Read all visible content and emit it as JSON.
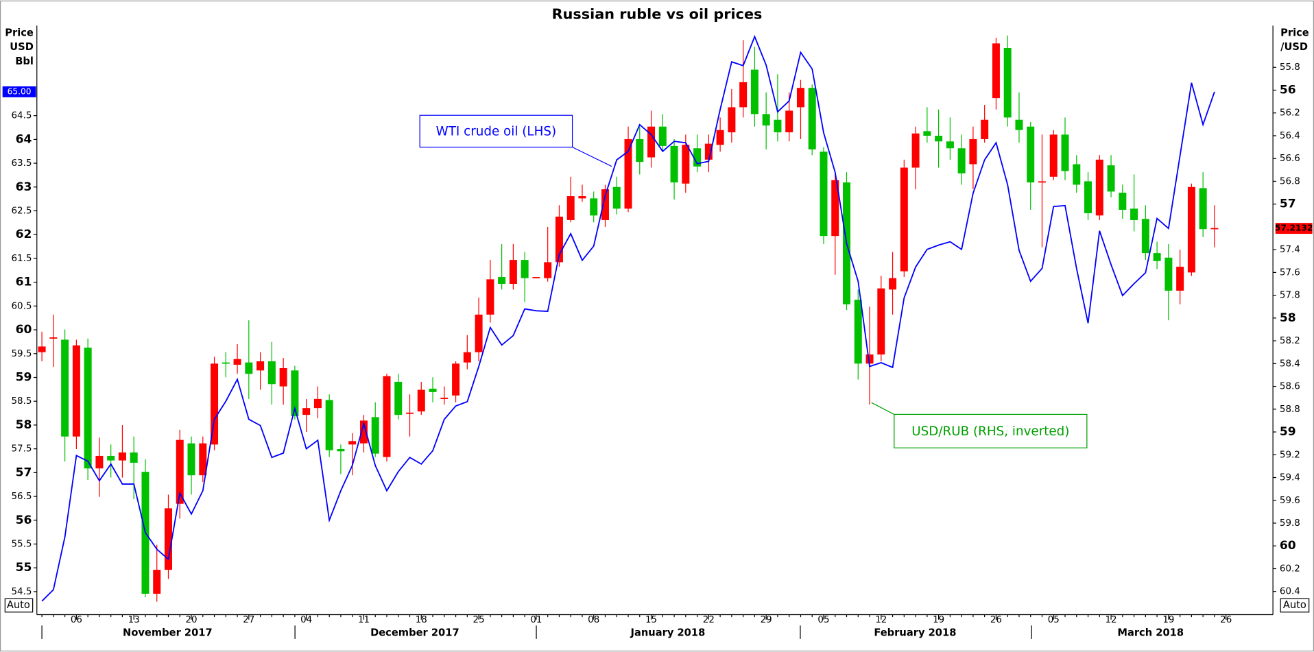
{
  "chart_data": {
    "type": "candlestick",
    "title": "Russian ruble vs oil prices",
    "y_label": [
      "Price",
      "USD",
      "Bbl"
    ],
    "y2_label": [
      "Price",
      "/USD"
    ],
    "buttons": [
      "Auto",
      "Auto"
    ],
    "months": [
      "November 2017",
      "December 2017",
      "January 2018",
      "February 2018",
      "March 2018"
    ],
    "categories": [
      null,
      null,
      null,
      "06",
      null,
      null,
      null,
      null,
      "13",
      null,
      null,
      null,
      null,
      "20",
      null,
      null,
      null,
      null,
      "27",
      null,
      null,
      null,
      null,
      "04",
      null,
      null,
      null,
      null,
      "11",
      null,
      null,
      null,
      null,
      "18",
      null,
      null,
      null,
      null,
      "25",
      null,
      null,
      null,
      null,
      "01",
      null,
      null,
      null,
      null,
      "08",
      null,
      null,
      null,
      null,
      "15",
      null,
      null,
      null,
      null,
      "22",
      null,
      null,
      null,
      null,
      "29",
      null,
      null,
      null,
      null,
      "05",
      null,
      null,
      null,
      null,
      "12",
      null,
      null,
      null,
      null,
      "19",
      null,
      null,
      null,
      null,
      "26",
      null,
      null,
      null,
      null,
      "05",
      null,
      null,
      null,
      null,
      "12",
      null,
      null,
      null,
      null,
      "19",
      null,
      null,
      null,
      null,
      "26"
    ],
    "ylim": [
      54.07,
      66.39
    ],
    "yticks": [
      54.5,
      55,
      55.5,
      56,
      56.5,
      57,
      57.5,
      58,
      58.5,
      59,
      59.5,
      60,
      60.5,
      61,
      61.5,
      62,
      62.5,
      63,
      63.5,
      64,
      64.5
    ],
    "y2lim": [
      60.581,
      55.434
    ],
    "y2ticks": [
      55.8,
      56,
      56.2,
      56.4,
      56.6,
      56.8,
      57,
      57.4,
      57.6,
      57.8,
      58,
      58.2,
      58.4,
      58.6,
      58.8,
      59,
      59.2,
      59.4,
      59.6,
      59.8,
      60,
      60.2,
      60.4
    ],
    "series": [
      {
        "type": "line",
        "name": "WTI crude oil (LHS)",
        "color": "#0000ff",
        "values": [
          54.3,
          54.54,
          55.65,
          57.36,
          57.24,
          56.83,
          57.18,
          56.76,
          56.76,
          55.74,
          55.39,
          55.18,
          56.57,
          56.13,
          56.62,
          58.12,
          58.5,
          58.96,
          58.12,
          57.99,
          57.32,
          57.41,
          58.35,
          57.5,
          57.68,
          56.0,
          56.62,
          57.15,
          58.03,
          57.15,
          56.62,
          57.02,
          57.32,
          57.18,
          57.46,
          58.12,
          58.4,
          58.49,
          59.23,
          60.05,
          59.68,
          59.88,
          60.44,
          60.4,
          60.39,
          61.58,
          62.02,
          61.46,
          61.76,
          62.82,
          63.57,
          63.75,
          64.31,
          64.1,
          63.75,
          63.96,
          63.93,
          63.49,
          63.54,
          64.63,
          65.63,
          65.55,
          66.16,
          65.56,
          64.58,
          64.81,
          65.83,
          65.48,
          64.14,
          63.31,
          61.81,
          61.02,
          59.23,
          59.31,
          59.21,
          60.67,
          61.32,
          61.69,
          61.78,
          61.85,
          61.69,
          62.87,
          63.57,
          63.93,
          63.05,
          61.67,
          61.02,
          61.29,
          62.59,
          62.61,
          61.29,
          60.14,
          62.08,
          61.37,
          60.72,
          60.97,
          61.2,
          62.34,
          62.13,
          63.66,
          65.19,
          64.31,
          65.0,
          null
        ],
        "value_labels": [
          null,
          null,
          null,
          null,
          null,
          null,
          null,
          null,
          null,
          null,
          null,
          null,
          null,
          null,
          null,
          null,
          null,
          null,
          null,
          null,
          null,
          null,
          null,
          null,
          null,
          null,
          null,
          null,
          null,
          null,
          null,
          null,
          null,
          null,
          null,
          null,
          null,
          null,
          null,
          null,
          null,
          null,
          null,
          null,
          null,
          null,
          null,
          null,
          null,
          null,
          null,
          null,
          null,
          null,
          null,
          null,
          null,
          null,
          null,
          null,
          null,
          null,
          null,
          null,
          null,
          null,
          null,
          null,
          null,
          null,
          null,
          null,
          null,
          null,
          null,
          null,
          null,
          null,
          null,
          null,
          null,
          null,
          null,
          null,
          null,
          null,
          null,
          null,
          null,
          null,
          null,
          null,
          null,
          null,
          null,
          null,
          null,
          null,
          null,
          null,
          null,
          null,
          "65.00",
          null
        ]
      },
      {
        "type": "candlestick",
        "name": "USD/RUB (RHS, inverted)",
        "axis": "y2",
        "label_color": "#00a000",
        "up_color": "#ff0000",
        "down_color": "#00c000",
        "open": [
          58.25,
          58.17,
          59.04,
          58.24,
          59.32,
          59.21,
          59.25,
          59.18,
          59.27,
          60.42,
          60.21,
          59.67,
          59.07,
          59.38,
          59.1,
          58.4,
          58.4,
          58.36,
          58.49,
          58.38,
          58.58,
          58.44,
          58.86,
          58.79,
          58.71,
          59.16,
          59.17,
          59.08,
          58.9,
          59.19,
          58.51,
          58.85,
          58.83,
          58.63,
          58.65,
          58.7,
          58.4,
          58.3,
          57.97,
          57.66,
          57.7,
          57.49,
          57.65,
          57.64,
          57.51,
          57.11,
          56.93,
          56.93,
          57.1,
          56.87,
          57.04,
          56.43,
          56.63,
          56.32,
          56.49,
          56.81,
          56.48,
          56.67,
          56.47,
          56.35,
          56.15,
          55.93,
          56.21,
          56.31,
          56.37,
          56.18,
          55.98,
          56.52,
          57.28,
          56.79,
          57.88,
          58.4,
          58.32,
          57.74,
          57.65,
          56.68,
          56.38,
          56.4,
          56.45,
          56.51,
          56.73,
          56.43,
          56.26,
          55.59,
          56.24,
          56.35,
          56.81,
          56.8,
          56.39,
          56.71,
          56.83,
          57.08,
          56.61,
          56.89,
          57.05,
          57.14,
          57.43,
          57.5,
          57.76,
          57.55,
          56.85,
          57.22,
          57.21,
          null
        ],
        "high": [
          58.38,
          58.43,
          59.26,
          59.15,
          59.42,
          59.57,
          59.4,
          59.4,
          59.59,
          60.45,
          60.49,
          60.29,
          59.76,
          59.55,
          59.44,
          59.16,
          58.52,
          58.49,
          58.71,
          58.63,
          58.76,
          58.76,
          58.89,
          59.0,
          58.88,
          59.22,
          59.37,
          59.38,
          59.18,
          59.22,
          59.26,
          58.89,
          59.04,
          58.85,
          58.74,
          58.76,
          58.74,
          58.45,
          58.38,
          58.04,
          57.75,
          57.75,
          57.86,
          57.65,
          57.68,
          57.55,
          57.16,
          56.98,
          57.16,
          57.2,
          57.09,
          57.07,
          56.74,
          56.68,
          56.54,
          56.96,
          56.9,
          56.72,
          56.72,
          56.54,
          56.46,
          56.24,
          56.32,
          56.52,
          56.45,
          56.45,
          56.43,
          56.57,
          57.35,
          57.62,
          57.93,
          58.54,
          58.76,
          58.38,
          57.97,
          57.64,
          56.87,
          56.46,
          56.68,
          56.61,
          56.83,
          56.87,
          56.46,
          56.17,
          56.32,
          56.46,
          57.05,
          57.38,
          56.79,
          56.79,
          56.9,
          57.14,
          57.14,
          56.94,
          57.13,
          57.24,
          57.49,
          57.57,
          58.02,
          57.88,
          57.63,
          57.29,
          57.38,
          null
        ],
        "low": [
          58.12,
          57.97,
          58.1,
          58.19,
          58.18,
          59.05,
          59.11,
          58.94,
          59.04,
          59.24,
          59.99,
          59.55,
          58.98,
          59.04,
          59.04,
          58.34,
          58.3,
          58.23,
          58.02,
          58.3,
          58.21,
          58.35,
          58.42,
          58.71,
          58.6,
          58.67,
          59.11,
          59.01,
          58.85,
          58.74,
          58.49,
          58.49,
          58.67,
          58.56,
          58.52,
          58.6,
          58.38,
          58.15,
          57.82,
          57.49,
          57.35,
          57.35,
          57.42,
          57.64,
          57.2,
          57.01,
          56.76,
          56.83,
          56.89,
          56.83,
          56.76,
          56.32,
          56.32,
          56.18,
          56.21,
          56.43,
          56.39,
          56.39,
          56.39,
          56.24,
          55.99,
          55.56,
          55.62,
          56.02,
          55.86,
          56.02,
          55.91,
          55.95,
          56.5,
          56.72,
          56.72,
          57.75,
          57.9,
          57.63,
          57.42,
          56.61,
          56.32,
          56.15,
          56.17,
          56.24,
          56.39,
          56.32,
          56.13,
          55.54,
          55.52,
          56.02,
          56.28,
          56.39,
          56.35,
          56.24,
          56.57,
          56.72,
          56.57,
          56.57,
          56.83,
          56.74,
          57.01,
          57.33,
          57.35,
          57.4,
          56.82,
          56.72,
          57.01,
          null
        ],
        "close": [
          58.3,
          58.18,
          58.19,
          59.04,
          58.26,
          59.32,
          59.21,
          59.25,
          59.18,
          59.35,
          60.42,
          60.21,
          59.63,
          59.1,
          59.38,
          59.11,
          58.39,
          58.41,
          58.39,
          58.46,
          58.38,
          58.6,
          58.46,
          58.85,
          58.79,
          58.72,
          59.15,
          59.11,
          59.1,
          58.87,
          59.22,
          58.56,
          58.84,
          58.82,
          58.62,
          58.71,
          58.68,
          58.39,
          58.3,
          57.97,
          57.64,
          57.7,
          57.49,
          57.65,
          57.65,
          57.51,
          57.14,
          56.95,
          56.95,
          57.14,
          56.85,
          57.04,
          56.43,
          56.59,
          56.32,
          56.49,
          56.82,
          56.51,
          56.61,
          56.48,
          56.37,
          56.15,
          55.82,
          56.21,
          56.26,
          56.37,
          56.15,
          55.98,
          56.54,
          57.28,
          56.81,
          57.84,
          58.4,
          58.32,
          57.75,
          57.59,
          56.68,
          56.36,
          56.4,
          56.45,
          56.51,
          56.65,
          56.43,
          56.07,
          55.63,
          56.26,
          56.32,
          56.81,
          56.76,
          56.39,
          56.65,
          56.8,
          57.1,
          56.66,
          56.9,
          57.04,
          57.13,
          57.43,
          57.47,
          57.76,
          57.6,
          56.86,
          57.2132,
          null
        ]
      }
    ]
  }
}
